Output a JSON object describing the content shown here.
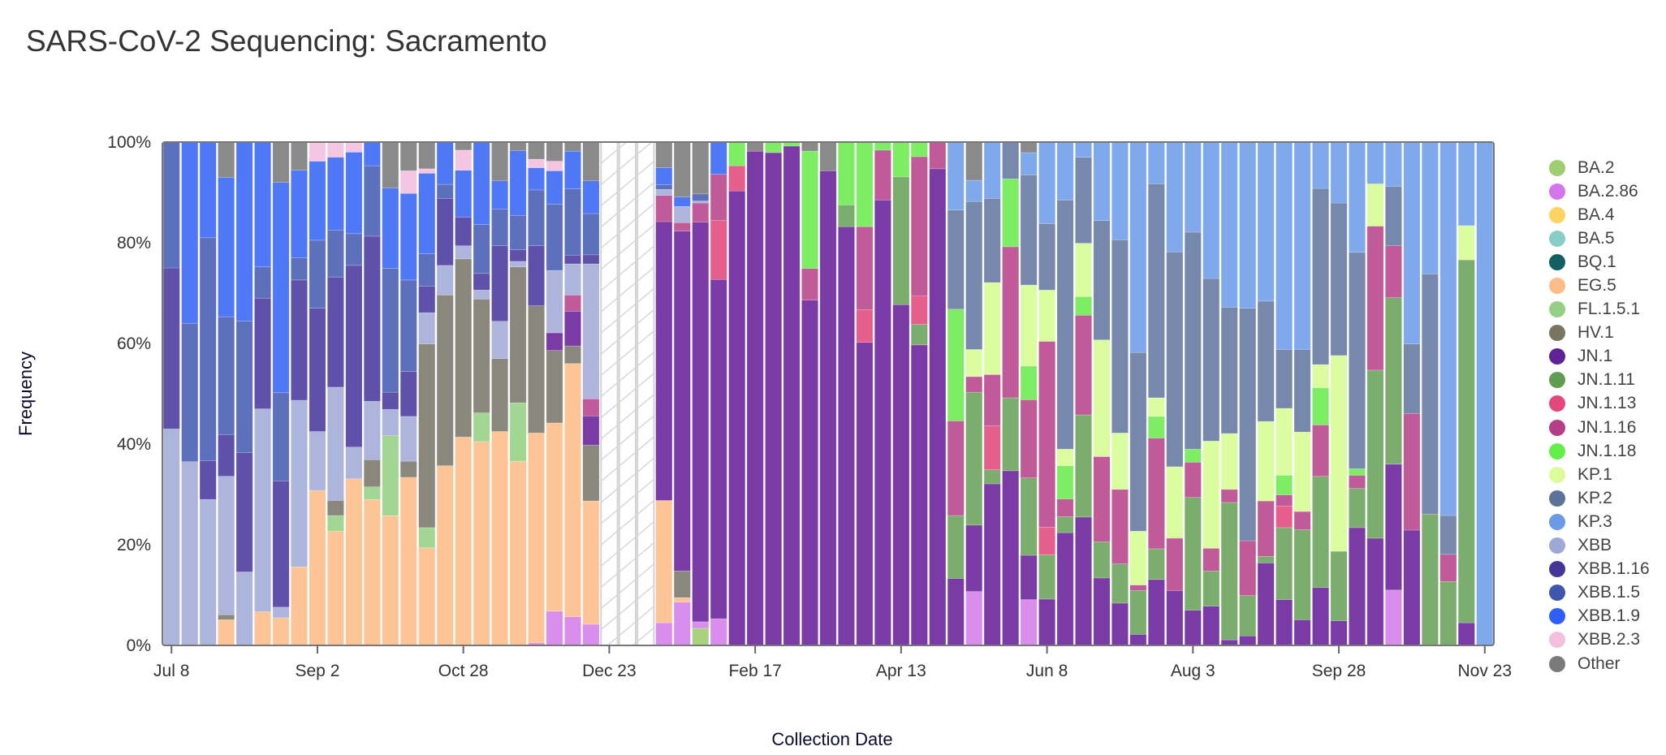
{
  "page": {
    "title": "SARS-CoV-2 Sequencing: Sacramento"
  },
  "chart_data": {
    "type": "bar",
    "stacked": true,
    "title": "SARS-CoV-2 Sequencing: Sacramento",
    "xlabel": "Collection Date",
    "ylabel": "Frequency",
    "ylim": [
      0,
      100
    ],
    "y_ticks": [
      "0%",
      "20%",
      "40%",
      "60%",
      "80%",
      "100%"
    ],
    "y_tick_values": [
      0,
      20,
      40,
      60,
      80,
      100
    ],
    "x_ticks": [
      {
        "label": "Jul 8",
        "bar": 0
      },
      {
        "label": "Sep 2",
        "bar": 8
      },
      {
        "label": "Oct 28",
        "bar": 16
      },
      {
        "label": "Dec 23",
        "bar": 24
      },
      {
        "label": "Feb 17",
        "bar": 32
      },
      {
        "label": "Apr 13",
        "bar": 40
      },
      {
        "label": "Jun 8",
        "bar": 48
      },
      {
        "label": "Aug 3",
        "bar": 56
      },
      {
        "label": "Sep 28",
        "bar": 64
      },
      {
        "label": "Nov 23",
        "bar": 72
      }
    ],
    "legend_position": "right",
    "no_data_pattern": "hatched",
    "series": [
      {
        "name": "BA.2",
        "color": "#9fcd72",
        "bar_color": "#a9d27f"
      },
      {
        "name": "BA.2.86",
        "color": "#d575ec",
        "bar_color": "#d98ded"
      },
      {
        "name": "BA.4",
        "color": "#fdd361",
        "bar_color": "#fdd87a"
      },
      {
        "name": "BA.5",
        "color": "#88cec6",
        "bar_color": "#97d4cd"
      },
      {
        "name": "BQ.1",
        "color": "#135f61",
        "bar_color": "#2f7072"
      },
      {
        "name": "EG.5",
        "color": "#fdbb88",
        "bar_color": "#fdc596"
      },
      {
        "name": "FL.1.5.1",
        "color": "#96d087",
        "bar_color": "#a2d693"
      },
      {
        "name": "HV.1",
        "color": "#7a7561",
        "bar_color": "#8a887c"
      },
      {
        "name": "JN.1",
        "color": "#5f2397",
        "bar_color": "#7b3ba6"
      },
      {
        "name": "JN.1.11",
        "color": "#5f9d53",
        "bar_color": "#7bad6e"
      },
      {
        "name": "JN.1.13",
        "color": "#e5477a",
        "bar_color": "#e65e8b"
      },
      {
        "name": "JN.1.16",
        "color": "#b63d88",
        "bar_color": "#c05a98"
      },
      {
        "name": "JN.1.18",
        "color": "#63ef48",
        "bar_color": "#7ded63"
      },
      {
        "name": "KP.1",
        "color": "#dbfd99",
        "bar_color": "#dcfca0"
      },
      {
        "name": "KP.2",
        "color": "#5c7298",
        "bar_color": "#7688ab"
      },
      {
        "name": "KP.3",
        "color": "#6a9ae9",
        "bar_color": "#80a8ec"
      },
      {
        "name": "XBB",
        "color": "#9da8d6",
        "bar_color": "#adb5dc"
      },
      {
        "name": "XBB.1.16",
        "color": "#453598",
        "bar_color": "#5f50aa"
      },
      {
        "name": "XBB.1.5",
        "color": "#3f56af",
        "bar_color": "#5c70bc"
      },
      {
        "name": "XBB.1.9",
        "color": "#2f5ffa",
        "bar_color": "#4f78f7"
      },
      {
        "name": "XBB.2.3",
        "color": "#f4bfdf",
        "bar_color": "#f4c6e2"
      },
      {
        "name": "Other",
        "color": "#7a7a7a",
        "bar_color": "#8a8a8a"
      }
    ],
    "bars": [
      {
        "XBB": 43,
        "XBB.1.16": 32,
        "XBB.1.5": 25
      },
      {
        "XBB": 36.5,
        "XBB.1.5": 27.5,
        "XBB.1.9": 36
      },
      {
        "XBB": 29,
        "XBB.1.16": 7.7,
        "XBB.1.5": 44.3,
        "XBB.1.9": 19
      },
      {
        "EG.5": 5.1,
        "HV.1": 1,
        "XBB": 27.5,
        "XBB.1.16": 8.3,
        "XBB.1.5": 23.4,
        "XBB.1.9": 27.7,
        "Other": 7
      },
      {
        "XBB": 14.6,
        "XBB.1.16": 23.7,
        "XBB.1.5": 26.1,
        "XBB.1.9": 35.6
      },
      {
        "EG.5": 6.7,
        "XBB": 40.3,
        "XBB.1.16": 22,
        "XBB.1.5": 6.2,
        "XBB.1.9": 24.8
      },
      {
        "EG.5": 5.5,
        "XBB": 2.1,
        "XBB.1.16": 25.1,
        "XBB.1.5": 17.5,
        "XBB.1.9": 41.8,
        "Other": 8
      },
      {
        "EG.5": 15.6,
        "XBB": 33.1,
        "XBB.1.16": 23.9,
        "XBB.1.5": 4.4,
        "XBB.1.9": 17.4,
        "Other": 5.6
      },
      {
        "EG.5": 30.8,
        "XBB": 11.7,
        "XBB.1.16": 24.5,
        "XBB.1.5": 13.5,
        "XBB.1.9": 15.7,
        "XBB.2.3": 3.8
      },
      {
        "EG.5": 22.7,
        "FL.1.5.1": 3.1,
        "HV.1": 3,
        "XBB": 22.5,
        "XBB.1.16": 21.9,
        "XBB.1.5": 9.3,
        "XBB.1.9": 14.5,
        "XBB.2.3": 3
      },
      {
        "EG.5": 33.1,
        "XBB": 6.3,
        "XBB.1.16": 36.1,
        "XBB.1.5": 6.3,
        "XBB.1.9": 16.2,
        "XBB.2.3": 2
      },
      {
        "EG.5": 29,
        "FL.1.5.1": 2.5,
        "HV.1": 5.4,
        "XBB": 11.6,
        "XBB.1.16": 32.8,
        "XBB.1.5": 14,
        "XBB.1.9": 4.7
      },
      {
        "EG.5": 25.8,
        "FL.1.5.1": 15.9,
        "XBB": 5.2,
        "XBB.1.16": 3.4,
        "XBB.1.5": 24.6,
        "XBB.1.9": 16,
        "Other": 9.1
      },
      {
        "EG.5": 33.4,
        "HV.1": 3.2,
        "XBB": 8.9,
        "XBB.1.16": 8.9,
        "XBB.1.5": 18.2,
        "XBB.1.9": 17.2,
        "XBB.2.3": 4.5,
        "Other": 5.7
      },
      {
        "EG.5": 19.4,
        "FL.1.5.1": 4,
        "HV.1": 36.5,
        "XBB": 6.2,
        "XBB.1.16": 5.3,
        "XBB.1.5": 6.4,
        "XBB.1.9": 16,
        "XBB.2.3": 0.9,
        "Other": 5.3
      },
      {
        "EG.5": 35.7,
        "HV.1": 33.9,
        "XBB": 5.9,
        "XBB.1.16": 13.3,
        "XBB.1.5": 2.8,
        "XBB.1.9": 8.4
      },
      {
        "EG.5": 41.4,
        "HV.1": 35.4,
        "XBB": 2.6,
        "XBB.1.16": 5.7,
        "XBB.1.9": 9.3,
        "XBB.2.3": 4,
        "Other": 1.6
      },
      {
        "EG.5": 40.5,
        "FL.1.5.1": 5.7,
        "HV.1": 22.6,
        "XBB": 1.8,
        "XBB.1.16": 3.3,
        "XBB.1.5": 9.7,
        "XBB.1.9": 16.4
      },
      {
        "EG.5": 42.5,
        "HV.1": 14.5,
        "XBB": 7.4,
        "XBB.1.16": 15,
        "XBB.1.5": 7.3,
        "XBB.1.9": 5.6,
        "Other": 7.7
      },
      {
        "EG.5": 36.6,
        "FL.1.5.1": 11.6,
        "HV.1": 27,
        "XBB": 1.1,
        "XBB.1.16": 2.3,
        "XBB.1.5": 6.8,
        "XBB.1.9": 12.9,
        "Other": 1.7
      },
      {
        "BA.2.86": 0.5,
        "EG.5": 41.7,
        "HV.1": 25.3,
        "XBB.1.16": 11.9,
        "XBB.1.5": 11.1,
        "XBB.1.9": 4.4,
        "XBB.2.3": 1.7,
        "Other": 3.4
      },
      {
        "BA.2.86": 6.8,
        "EG.5": 37.4,
        "HV.1": 14.4,
        "JN.1": 3.5,
        "XBB": 12.4,
        "XBB.1.5": 13.2,
        "XBB.1.9": 6.6,
        "XBB.2.3": 1.9,
        "Other": 3.8
      },
      {
        "BA.2.86": 5.7,
        "EG.5": 50.3,
        "HV.1": 3.5,
        "JN.1": 6.9,
        "JN.1.16": 3.2,
        "XBB": 6.2,
        "XBB.1.16": 1.7,
        "XBB.1.5": 13.2,
        "XBB.1.9": 7.5,
        "Other": 1.8
      },
      {
        "BA.2.86": 4.2,
        "EG.5": 24.5,
        "HV.1": 11.1,
        "JN.1": 5.8,
        "JN.1.16": 3.4,
        "XBB": 26.8,
        "XBB.1.16": 1.8,
        "XBB.1.5": 8.2,
        "XBB.1.9": 6.5,
        "Other": 7.7
      },
      null,
      null,
      null,
      {
        "BA.2.86": 4.5,
        "EG.5": 24.3,
        "JN.1": 55.4,
        "JN.1.16": 5.2,
        "XBB": 1.2,
        "XBB.1.5": 0.9,
        "XBB.1.9": 3.4,
        "Other": 5.1
      },
      {
        "BA.2.86": 8.6,
        "EG.5": 0.9,
        "HV.1": 5.3,
        "JN.1": 67.5,
        "JN.1.16": 1.7,
        "XBB": 3.2,
        "XBB.1.9": 1.9,
        "Other": 10.9
      },
      {
        "BA.2": 3.4,
        "BA.2.86": 1.3,
        "JN.1": 79.4,
        "JN.1.16": 3.8,
        "XBB": 0.4,
        "XBB.1.5": 1.4,
        "Other": 10.3
      },
      {
        "BA.2.86": 5.3,
        "JN.1": 67.4,
        "JN.1.13": 11.7,
        "JN.1.16": 9.2,
        "XBB.1.9": 6.4
      },
      {
        "JN.1": 90.3,
        "JN.1.13": 5,
        "JN.1.18": 4.7
      },
      {
        "JN.1": 98.2,
        "Other": 1.8
      },
      {
        "JN.1": 97.9,
        "JN.1.18": 2.1
      },
      {
        "JN.1": 99.2,
        "JN.1.18": 0.8
      },
      {
        "JN.1": 68.6,
        "JN.1.16": 6.3,
        "JN.1.18": 23.3,
        "Other": 1.8
      },
      {
        "JN.1": 94.3,
        "Other": 5.7
      },
      {
        "JN.1": 83.2,
        "JN.1.11": 4.3,
        "JN.1.18": 12.5
      },
      {
        "JN.1": 60.2,
        "JN.1.13": 6.5,
        "JN.1.16": 16.5,
        "JN.1.18": 16.8
      },
      {
        "JN.1": 88.5,
        "JN.1.16": 9.9,
        "JN.1.18": 1.6
      },
      {
        "JN.1": 67.7,
        "JN.1.11": 25.4,
        "JN.1.18": 6.9
      },
      {
        "JN.1": 59.7,
        "JN.1.11": 4.1,
        "JN.1.13": 5.6,
        "JN.1.16": 27.7,
        "JN.1.18": 2.9
      },
      {
        "JN.1": 94.7,
        "JN.1.16": 5.3
      },
      {
        "JN.1": 13.3,
        "JN.1.11": 12.5,
        "JN.1.16": 18.8,
        "JN.1.18": 22.2,
        "KP.2": 19.7,
        "KP.3": 13.5
      },
      {
        "BA.2.86": 10.7,
        "JN.1": 13.2,
        "JN.1.11": 26.4,
        "JN.1.16": 3.1,
        "KP.1": 5.4,
        "KP.2": 29.4,
        "KP.3": 4.2,
        "Other": 7.6
      },
      {
        "JN.1": 32.1,
        "JN.1.11": 2.8,
        "JN.1.13": 8.7,
        "JN.1.16": 10.2,
        "KP.1": 18.3,
        "KP.2": 16.7,
        "KP.3": 11.2
      },
      {
        "JN.1": 34.7,
        "JN.1.11": 14.5,
        "JN.1.16": 30,
        "JN.1.18": 13.5,
        "KP.2": 7.3
      },
      {
        "BA.2.86": 9.1,
        "JN.1": 8.8,
        "JN.1.11": 15.4,
        "JN.1.16": 15.5,
        "JN.1.18": 6.7,
        "KP.1": 16.1,
        "KP.2": 21.9,
        "KP.3": 4.4,
        "Other": 2.1
      },
      {
        "JN.1": 9.2,
        "JN.1.11": 8.8,
        "JN.1.13": 5.5,
        "JN.1.16": 36.9,
        "KP.1": 10.2,
        "KP.2": 13.2,
        "KP.3": 16.2
      },
      {
        "JN.1": 22.4,
        "JN.1.11": 3.2,
        "JN.1.16": 3.5,
        "JN.1.18": 6.6,
        "KP.1": 3.3,
        "KP.2": 49.5,
        "KP.3": 11.5
      },
      {
        "JN.1": 25.5,
        "JN.1.11": 20.3,
        "JN.1.16": 19.8,
        "JN.1.18": 3.7,
        "KP.1": 10.6,
        "KP.2": 17.1,
        "KP.3": 3
      },
      {
        "JN.1": 13.4,
        "JN.1.11": 7.2,
        "JN.1.16": 16.9,
        "KP.1": 23.2,
        "KP.2": 23.7,
        "KP.3": 15.6
      },
      {
        "JN.1": 8.4,
        "JN.1.11": 7.8,
        "JN.1.16": 14.8,
        "KP.1": 11.2,
        "KP.2": 38.4,
        "KP.3": 19.4
      },
      {
        "JN.1": 2.2,
        "JN.1.11": 8.7,
        "JN.1.16": 1.1,
        "KP.1": 10.7,
        "KP.2": 35.5,
        "KP.3": 41.8
      },
      {
        "JN.1": 13.1,
        "JN.1.11": 6.1,
        "JN.1.16": 22,
        "JN.1.18": 4.3,
        "KP.1": 3.7,
        "KP.2": 42.5,
        "KP.3": 8.3
      },
      {
        "JN.1": 10.9,
        "JN.1.16": 10.4,
        "KP.1": 14.2,
        "KP.2": 42.7,
        "KP.3": 21.8
      },
      {
        "JN.1": 7,
        "JN.1.11": 22.4,
        "JN.1.16": 7,
        "JN.1.18": 2.6,
        "KP.2": 43.1,
        "KP.3": 17.9
      },
      {
        "JN.1": 7.8,
        "JN.1.11": 7,
        "JN.1.16": 4.5,
        "KP.1": 21.3,
        "KP.2": 32.3,
        "KP.3": 27.1
      },
      {
        "JN.1": 1.1,
        "JN.1.11": 27.3,
        "JN.1.16": 2.6,
        "KP.1": 11.1,
        "KP.2": 25.1,
        "KP.3": 32.8
      },
      {
        "JN.1": 1.9,
        "JN.1.11": 8,
        "JN.1.16": 10.9,
        "KP.2": 46.2,
        "KP.3": 33
      },
      {
        "JN.1": 16.4,
        "JN.1.11": 1.3,
        "JN.1.16": 11,
        "KP.1": 15.8,
        "KP.2": 23.9,
        "KP.3": 31.6
      },
      {
        "JN.1": 9.1,
        "JN.1.11": 14.3,
        "JN.1.13": 4.3,
        "JN.1.16": 2.2,
        "JN.1.18": 3.9,
        "KP.1": 13.3,
        "KP.2": 11.7,
        "KP.3": 41.2
      },
      {
        "JN.1": 5.1,
        "JN.1.11": 17.9,
        "JN.1.16": 3.6,
        "KP.1": 15.8,
        "KP.2": 16.4,
        "KP.3": 41.2
      },
      {
        "JN.1": 11.5,
        "JN.1.11": 22.1,
        "JN.1.16": 10.2,
        "JN.1.18": 7.4,
        "KP.1": 4.6,
        "KP.2": 35,
        "KP.3": 9.2
      },
      {
        "JN.1": 4.9,
        "JN.1.11": 13.8,
        "KP.1": 38.9,
        "KP.2": 30.3,
        "KP.3": 12.1
      },
      {
        "JN.1": 23.4,
        "JN.1.11": 7.8,
        "JN.1.16": 2.6,
        "JN.1.18": 1.3,
        "KP.2": 43,
        "KP.3": 21.9
      },
      {
        "JN.1": 21.3,
        "JN.1.11": 33.4,
        "JN.1.16": 28.6,
        "KP.1": 8.4,
        "KP.3": 8.3
      },
      {
        "BA.2.86": 11,
        "JN.1": 25,
        "JN.1.11": 33.1,
        "JN.1.16": 10.3,
        "KP.2": 11.8,
        "KP.3": 8.8
      },
      {
        "JN.1": 22.9,
        "JN.1.16": 23.2,
        "KP.2": 13.8,
        "KP.3": 40.1
      },
      {
        "JN.1.11": 26.1,
        "KP.2": 47.7,
        "KP.3": 26.2
      },
      {
        "JN.1.11": 12.7,
        "JN.1.16": 5.4,
        "KP.2": 7.7,
        "KP.3": 74.2
      },
      {
        "JN.1": 4.5,
        "JN.1.11": 72.1,
        "KP.1": 6.8,
        "KP.3": 16.6
      },
      {
        "KP.3": 100
      }
    ]
  }
}
